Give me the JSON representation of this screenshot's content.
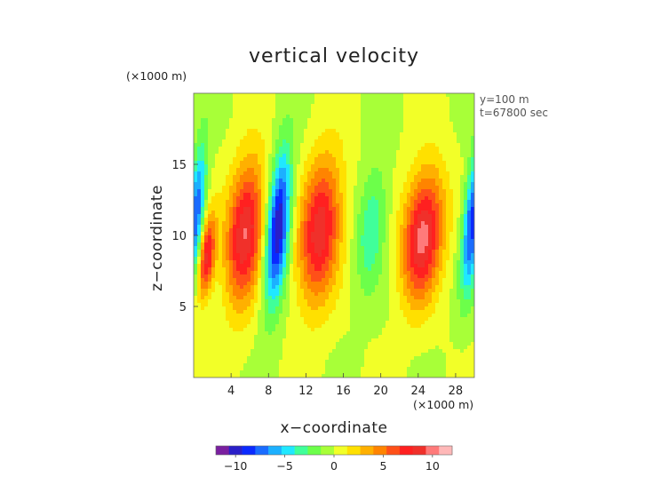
{
  "chart_data": {
    "type": "heatmap",
    "title": "vertical velocity",
    "xlabel": "x−coordinate",
    "ylabel": "z−coordinate",
    "x_unit": "(×1000 m)",
    "y_unit": "(×1000 m)",
    "annotations": [
      "y=100 m",
      "t=67800 sec"
    ],
    "xlim": [
      0,
      30
    ],
    "ylim": [
      0,
      20
    ],
    "x_ticks": [
      4,
      8,
      12,
      16,
      20,
      24,
      28
    ],
    "y_ticks": [
      5,
      10,
      15
    ],
    "x_tick_labels": [
      "4",
      "8",
      "12",
      "16",
      "20",
      "24",
      "28"
    ],
    "y_tick_labels": [
      "5",
      "10",
      "15"
    ],
    "colorbar": {
      "range": [
        -12,
        12
      ],
      "ticks": [
        -10,
        -5,
        0,
        5,
        10
      ],
      "tick_labels": [
        "−10",
        "−5",
        "0",
        "5",
        "10"
      ],
      "colors": [
        "#7a1fa0",
        "#2a1fc8",
        "#0a2aff",
        "#1a6cff",
        "#1cb0ff",
        "#20e8ff",
        "#40ff9a",
        "#6cff4a",
        "#a8ff38",
        "#f2ff28",
        "#ffe000",
        "#ffb000",
        "#ff8400",
        "#ff5018",
        "#ff2020",
        "#f0302a",
        "#ff7a7a",
        "#ffb8b8"
      ]
    },
    "features": [
      {
        "kind": "updraft",
        "x": 5.5,
        "z": 10.2,
        "peak": 9.5,
        "rx": 2.1,
        "rz": 5.2
      },
      {
        "kind": "updraft",
        "x": 13.5,
        "z": 10.3,
        "peak": 9.0,
        "rx": 2.3,
        "rz": 5.3
      },
      {
        "kind": "updraft",
        "x": 24.5,
        "z": 10.0,
        "peak": 10.0,
        "rx": 2.2,
        "rz": 4.7
      },
      {
        "kind": "updraft",
        "x": 1.4,
        "z": 8.5,
        "peak": 8.5,
        "rx": 0.9,
        "rz": 3.0
      },
      {
        "kind": "downdraft",
        "x": 9.0,
        "z": 10.5,
        "peak": -11.0,
        "rx": 1.3,
        "rz": 5.5
      },
      {
        "kind": "downdraft",
        "x": 0.3,
        "z": 11.5,
        "peak": -8.0,
        "rx": 0.9,
        "rz": 5.0
      },
      {
        "kind": "downdraft",
        "x": 29.8,
        "z": 11.0,
        "peak": -9.0,
        "rx": 1.0,
        "rz": 5.0
      },
      {
        "kind": "downdraft",
        "x": 19.0,
        "z": 10.5,
        "peak": -4.0,
        "rx": 1.6,
        "rz": 4.5
      }
    ]
  }
}
